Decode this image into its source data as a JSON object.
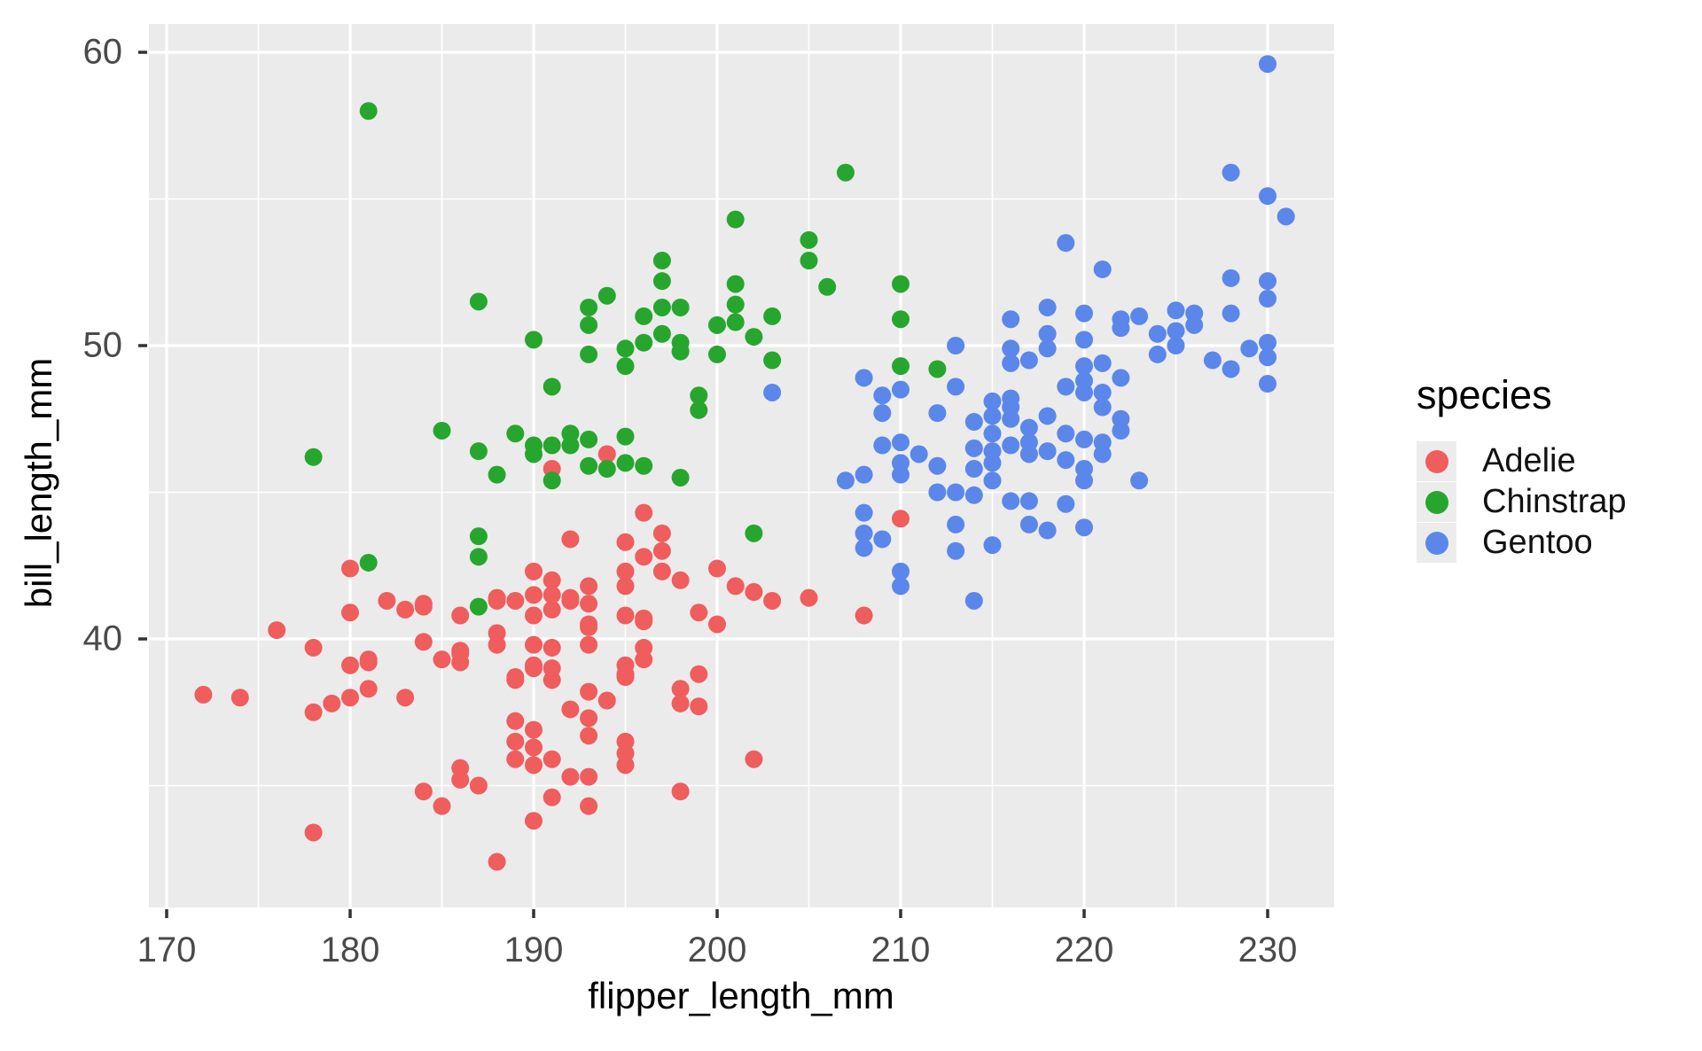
{
  "chart_data": {
    "type": "scatter",
    "title": "",
    "xlabel": "flipper_length_mm",
    "ylabel": "bill_length_mm",
    "legend": {
      "title": "species",
      "position": "right"
    },
    "x_ticks": [
      170,
      180,
      190,
      200,
      210,
      220,
      230
    ],
    "x_minor": [
      175,
      185,
      195,
      205,
      215,
      225
    ],
    "y_ticks": [
      40,
      50,
      60
    ],
    "y_minor": [
      35,
      45,
      55
    ],
    "xlim": [
      169,
      233.5
    ],
    "ylim": [
      30.9,
      61
    ],
    "grid": true,
    "panel_bg": "#ebebeb",
    "grid_color": "#ffffff",
    "tick_color": "#333333",
    "series": [
      {
        "name": "Adelie",
        "color": "#ef5d5d",
        "points": [
          [
            180,
            42.4
          ],
          [
            182,
            41.3
          ],
          [
            183,
            41.0
          ],
          [
            184,
            41.2
          ],
          [
            180,
            40.9
          ],
          [
            188,
            41.4
          ],
          [
            189,
            41.3
          ],
          [
            190,
            41.5
          ],
          [
            190,
            42.3
          ],
          [
            191,
            45.8
          ],
          [
            194,
            46.3
          ],
          [
            191,
            41.0
          ],
          [
            196,
            44.3
          ],
          [
            192,
            43.4
          ],
          [
            195,
            43.3
          ],
          [
            196,
            42.8
          ],
          [
            197,
            43.6
          ],
          [
            197,
            43.0
          ],
          [
            197,
            42.3
          ],
          [
            195,
            42.3
          ],
          [
            195,
            41.8
          ],
          [
            198,
            42.0
          ],
          [
            200,
            42.4
          ],
          [
            201,
            41.8
          ],
          [
            202,
            41.6
          ],
          [
            203,
            41.3
          ],
          [
            205,
            41.4
          ],
          [
            199,
            40.9
          ],
          [
            210,
            44.1
          ],
          [
            191,
            42.0
          ],
          [
            192,
            41.4
          ],
          [
            193,
            41.8
          ],
          [
            193,
            41.2
          ],
          [
            191,
            41.5
          ],
          [
            176,
            40.3
          ],
          [
            172,
            38.1
          ],
          [
            174,
            38.0
          ],
          [
            178,
            39.7
          ],
          [
            180,
            39.1
          ],
          [
            181,
            39.3
          ],
          [
            181,
            38.3
          ],
          [
            180,
            38.0
          ],
          [
            179,
            37.8
          ],
          [
            178,
            37.5
          ],
          [
            183,
            38.0
          ],
          [
            184,
            39.9
          ],
          [
            185,
            39.3
          ],
          [
            186,
            39.6
          ],
          [
            186,
            39.2
          ],
          [
            188,
            40.2
          ],
          [
            188,
            39.8
          ],
          [
            189,
            38.6
          ],
          [
            190,
            40.8
          ],
          [
            190,
            39.8
          ],
          [
            190,
            39.1
          ],
          [
            189,
            37.2
          ],
          [
            190,
            36.9
          ],
          [
            190,
            36.3
          ],
          [
            190,
            35.7
          ],
          [
            189,
            36.5
          ],
          [
            189,
            35.9
          ],
          [
            187,
            35.0
          ],
          [
            186,
            35.6
          ],
          [
            186,
            35.2
          ],
          [
            184,
            34.8
          ],
          [
            185,
            34.3
          ],
          [
            178,
            33.4
          ],
          [
            188,
            32.4
          ],
          [
            186,
            40.8
          ],
          [
            191,
            39.7
          ],
          [
            191,
            39.0
          ],
          [
            191,
            38.6
          ],
          [
            190,
            33.8
          ],
          [
            191,
            34.6
          ],
          [
            193,
            40.5
          ],
          [
            193,
            39.8
          ],
          [
            195,
            40.8
          ],
          [
            196,
            40.6
          ],
          [
            200,
            40.5
          ],
          [
            208,
            40.8
          ],
          [
            198,
            38.3
          ],
          [
            198,
            37.8
          ],
          [
            199,
            38.8
          ],
          [
            199,
            37.7
          ],
          [
            202,
            35.9
          ],
          [
            198,
            34.8
          ],
          [
            193,
            34.3
          ],
          [
            192,
            35.3
          ],
          [
            193,
            35.3
          ],
          [
            191,
            35.9
          ],
          [
            193,
            37.3
          ],
          [
            193,
            36.7
          ],
          [
            194,
            37.9
          ],
          [
            192,
            37.6
          ],
          [
            193,
            38.2
          ],
          [
            195,
            36.5
          ],
          [
            195,
            36.1
          ],
          [
            195,
            35.7
          ],
          [
            196,
            39.7
          ],
          [
            196,
            39.3
          ],
          [
            195,
            39.1
          ],
          [
            195,
            38.7
          ],
          [
            181,
            39.2
          ],
          [
            186,
            39.5
          ],
          [
            189,
            38.7
          ],
          [
            190,
            39.0
          ],
          [
            192,
            41.3
          ],
          [
            188,
            41.3
          ],
          [
            184,
            41.1
          ],
          [
            196,
            40.7
          ],
          [
            195,
            38.8
          ],
          [
            193,
            40.4
          ]
        ]
      },
      {
        "name": "Chinstrap",
        "color": "#27a62e",
        "points": [
          [
            181,
            58.0
          ],
          [
            187,
            51.5
          ],
          [
            207,
            55.9
          ],
          [
            201,
            54.3
          ],
          [
            205,
            53.6
          ],
          [
            205,
            52.9
          ],
          [
            197,
            52.9
          ],
          [
            197,
            52.2
          ],
          [
            206,
            52.0
          ],
          [
            210,
            52.1
          ],
          [
            201,
            52.1
          ],
          [
            201,
            51.4
          ],
          [
            194,
            51.7
          ],
          [
            193,
            51.3
          ],
          [
            197,
            51.3
          ],
          [
            198,
            51.3
          ],
          [
            196,
            51.0
          ],
          [
            203,
            51.0
          ],
          [
            210,
            50.9
          ],
          [
            193,
            50.7
          ],
          [
            200,
            50.7
          ],
          [
            193,
            49.7
          ],
          [
            195,
            49.9
          ],
          [
            195,
            49.3
          ],
          [
            196,
            50.1
          ],
          [
            197,
            50.4
          ],
          [
            198,
            50.1
          ],
          [
            198,
            49.8
          ],
          [
            200,
            49.7
          ],
          [
            201,
            50.8
          ],
          [
            202,
            50.3
          ],
          [
            203,
            49.5
          ],
          [
            210,
            49.3
          ],
          [
            212,
            49.2
          ],
          [
            192,
            47.0
          ],
          [
            192,
            46.6
          ],
          [
            191,
            46.6
          ],
          [
            193,
            46.8
          ],
          [
            193,
            45.9
          ],
          [
            194,
            45.8
          ],
          [
            195,
            46.0
          ],
          [
            195,
            46.9
          ],
          [
            196,
            45.9
          ],
          [
            198,
            45.5
          ],
          [
            199,
            48.3
          ],
          [
            199,
            47.8
          ],
          [
            191,
            48.6
          ],
          [
            191,
            45.4
          ],
          [
            202,
            43.6
          ],
          [
            190,
            50.2
          ],
          [
            178,
            46.2
          ],
          [
            185,
            47.1
          ],
          [
            187,
            46.4
          ],
          [
            189,
            47.0
          ],
          [
            190,
            46.6
          ],
          [
            190,
            46.3
          ],
          [
            188,
            45.6
          ],
          [
            187,
            43.5
          ],
          [
            187,
            42.8
          ],
          [
            181,
            42.6
          ],
          [
            187,
            41.1
          ]
        ]
      },
      {
        "name": "Gentoo",
        "color": "#5b87ea",
        "points": [
          [
            230,
            59.6
          ],
          [
            228,
            55.9
          ],
          [
            230,
            55.1
          ],
          [
            231,
            54.4
          ],
          [
            219,
            53.5
          ],
          [
            221,
            52.6
          ],
          [
            228,
            52.3
          ],
          [
            230,
            52.2
          ],
          [
            230,
            51.6
          ],
          [
            218,
            51.3
          ],
          [
            220,
            51.1
          ],
          [
            225,
            51.2
          ],
          [
            226,
            51.1
          ],
          [
            228,
            51.1
          ],
          [
            222,
            50.9
          ],
          [
            223,
            51.0
          ],
          [
            216,
            50.9
          ],
          [
            210,
            48.5
          ],
          [
            208,
            48.9
          ],
          [
            209,
            48.3
          ],
          [
            209,
            47.7
          ],
          [
            212,
            47.7
          ],
          [
            210,
            46.7
          ],
          [
            209,
            46.6
          ],
          [
            211,
            46.3
          ],
          [
            210,
            46.0
          ],
          [
            210,
            45.6
          ],
          [
            212,
            45.9
          ],
          [
            207,
            45.4
          ],
          [
            208,
            45.6
          ],
          [
            212,
            45.0
          ],
          [
            203,
            48.4
          ],
          [
            208,
            44.3
          ],
          [
            208,
            43.6
          ],
          [
            208,
            43.1
          ],
          [
            209,
            43.4
          ],
          [
            210,
            42.3
          ],
          [
            210,
            41.8
          ],
          [
            213,
            50.0
          ],
          [
            213,
            48.6
          ],
          [
            213,
            45.0
          ],
          [
            214,
            47.4
          ],
          [
            214,
            46.5
          ],
          [
            214,
            45.8
          ],
          [
            214,
            44.9
          ],
          [
            215,
            48.1
          ],
          [
            215,
            47.6
          ],
          [
            215,
            47.0
          ],
          [
            215,
            46.4
          ],
          [
            215,
            45.4
          ],
          [
            216,
            49.9
          ],
          [
            216,
            49.4
          ],
          [
            217,
            49.5
          ],
          [
            216,
            47.9
          ],
          [
            216,
            47.5
          ],
          [
            216,
            46.6
          ],
          [
            217,
            46.7
          ],
          [
            217,
            46.3
          ],
          [
            216,
            44.7
          ],
          [
            217,
            44.7
          ],
          [
            218,
            47.6
          ],
          [
            218,
            50.4
          ],
          [
            218,
            49.9
          ],
          [
            219,
            47.0
          ],
          [
            219,
            46.1
          ],
          [
            220,
            50.2
          ],
          [
            220,
            49.3
          ],
          [
            220,
            48.8
          ],
          [
            220,
            48.4
          ],
          [
            221,
            49.4
          ],
          [
            221,
            48.4
          ],
          [
            222,
            48.9
          ],
          [
            222,
            50.6
          ],
          [
            222,
            47.5
          ],
          [
            222,
            47.1
          ],
          [
            221,
            46.7
          ],
          [
            221,
            46.3
          ],
          [
            223,
            45.4
          ],
          [
            224,
            50.4
          ],
          [
            224,
            49.7
          ],
          [
            225,
            50.5
          ],
          [
            225,
            50.0
          ],
          [
            226,
            50.7
          ],
          [
            228,
            49.2
          ],
          [
            227,
            49.5
          ],
          [
            229,
            49.9
          ],
          [
            230,
            50.1
          ],
          [
            230,
            49.6
          ],
          [
            230,
            48.7
          ],
          [
            219,
            44.6
          ],
          [
            220,
            45.8
          ],
          [
            220,
            45.4
          ],
          [
            220,
            46.8
          ],
          [
            217,
            43.9
          ],
          [
            218,
            43.7
          ],
          [
            220,
            43.8
          ],
          [
            213,
            43.9
          ],
          [
            213,
            43.0
          ],
          [
            215,
            43.2
          ],
          [
            214,
            41.3
          ],
          [
            216,
            48.2
          ],
          [
            217,
            47.2
          ],
          [
            218,
            46.4
          ],
          [
            215,
            46.0
          ],
          [
            219,
            48.6
          ],
          [
            221,
            47.9
          ]
        ]
      }
    ]
  }
}
